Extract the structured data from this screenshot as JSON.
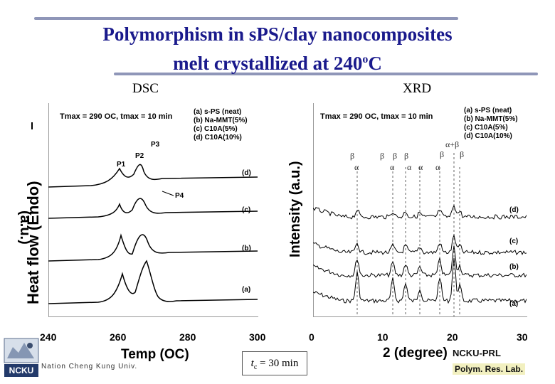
{
  "slide": {
    "title_line1": "Polymorphism in sPS/clay nanocomposites",
    "title_line2": "melt crystallized at 240",
    "title_sup": "o",
    "title_end": "C",
    "dsc_label": "DSC",
    "xrd_label": "XRD",
    "tc_prefix": "t",
    "tc_sub": "c",
    "tc_value": " = 30 min",
    "university": "Nation Cheng Kung Univ.",
    "logo_text": "NCKU",
    "lab_line1": "NCKU-PRL",
    "lab_line2": "Polym. Res. Lab."
  },
  "dsc": {
    "tmax_text": "Tmax = 290 OC, tmax = 10 min",
    "legend": [
      "(a) s-PS (neat)",
      "(b) Na-MMT(5%)",
      "(c) C10A(5%)",
      "(d) C10A(10%)"
    ],
    "curve_labels": [
      "(a)",
      "(b)",
      "(c)",
      "(d)"
    ],
    "peaks": [
      "P1",
      "P2",
      "P3",
      "P4"
    ],
    "x_ticks": [
      "240",
      "260",
      "280",
      "300"
    ],
    "xlabel": "Temp (OC)",
    "ylabel": "Heat flow (Endo)",
    "ylabel_tail": "(a.u.)"
  },
  "xrd": {
    "tmax_text": "Tmax = 290 OC, tmax = 10 min",
    "legend": [
      "(a) s-PS (neat)",
      "(b) Na-MMT(5%)",
      "(c) C10A(5%)",
      "(d) C10A(10%)"
    ],
    "curve_labels": [
      "(d)",
      "(c)",
      "(b)",
      "(a)"
    ],
    "x_ticks": [
      "0",
      "10",
      "20",
      "30"
    ],
    "xlabel": "2 (degree)",
    "xlabel_prefix": "2",
    "ylabel": "Intensity (a.u.)",
    "alpha": "α",
    "beta": "β",
    "alpha_beta": "α+β"
  },
  "chart_data": [
    {
      "type": "line",
      "title": "DSC",
      "xlabel": "Temp (OC)",
      "ylabel": "Heat flow (Endo)",
      "xlim": [
        240,
        300
      ],
      "series": [
        {
          "name": "(a) s-PS (neat)"
        },
        {
          "name": "(b) Na-MMT(5%)"
        },
        {
          "name": "(c) C10A(5%)"
        },
        {
          "name": "(d) C10A(10%)"
        }
      ]
    },
    {
      "type": "line",
      "title": "XRD",
      "xlabel": "2 (degree)",
      "ylabel": "Intensity (a.u.)",
      "xlim": [
        0,
        30
      ],
      "series": [
        {
          "name": "(a) s-PS (neat)"
        },
        {
          "name": "(b) Na-MMT(5%)"
        },
        {
          "name": "(c) C10A(5%)"
        },
        {
          "name": "(d) C10A(10%)"
        }
      ]
    }
  ]
}
